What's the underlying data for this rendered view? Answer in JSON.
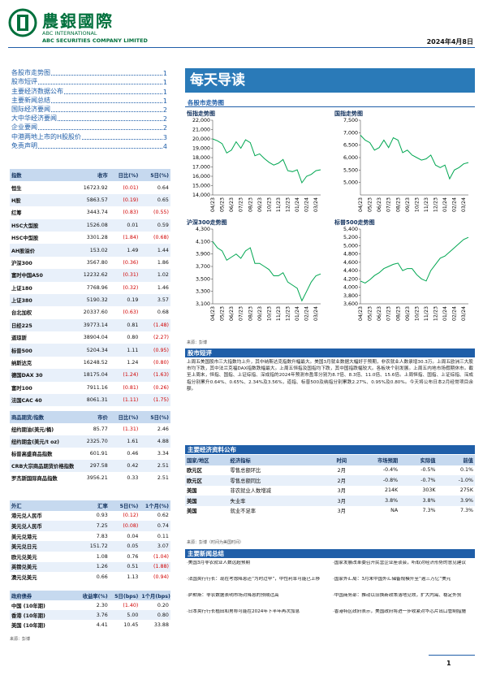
{
  "header": {
    "company_cn": "農銀國際",
    "company_en1": "ABC INTERNATIONAL",
    "company_en2": "ABC SECURITIES COMPANY LIMITED",
    "date": "2024年4月8日"
  },
  "toc": [
    {
      "item": "各股市走势图",
      "page": "1"
    },
    {
      "item": "股市短评",
      "page": "1"
    },
    {
      "item": "主要经济数据公布",
      "page": "1"
    },
    {
      "item": "主要新闻总结",
      "page": "1"
    },
    {
      "item": "国际经济要闻",
      "page": "2"
    },
    {
      "item": "大中华经济要闻",
      "page": "2"
    },
    {
      "item": "企业要闻",
      "page": "2"
    },
    {
      "item": "中港两地上市的H股股价",
      "page": "3"
    },
    {
      "item": "免责声明",
      "page": "4"
    }
  ],
  "index_table": {
    "header": [
      "指数",
      "收市",
      "日比(%)",
      "5日(%)"
    ],
    "rows": [
      [
        "恒生",
        "16723.92",
        "(0.01)",
        "0.64"
      ],
      [
        "H股",
        "5863.57",
        "(0.19)",
        "0.65"
      ],
      [
        "红筹",
        "3443.74",
        "(0.83)",
        "(0.55)"
      ],
      [
        "HSC大型股",
        "1526.08",
        "0.01",
        "0.59"
      ],
      [
        "HSC中型股",
        "3301.28",
        "(1.84)",
        "(0.68)"
      ],
      [
        "AH股溢价",
        "153.02",
        "1.49",
        "1.44"
      ],
      [
        "沪深300",
        "3567.80",
        "(0.36)",
        "1.86"
      ],
      [
        "富时中国A50",
        "12232.62",
        "(0.31)",
        "1.02"
      ],
      [
        "上证180",
        "7768.96",
        "(0.32)",
        "1.46"
      ],
      [
        "上证380",
        "5190.32",
        "0.19",
        "3.57"
      ],
      [
        "台北加权",
        "20337.60",
        "(0.63)",
        "0.68"
      ],
      [
        "日经225",
        "39773.14",
        "0.81",
        "(1.48)"
      ],
      [
        "道琼斯",
        "38904.04",
        "0.80",
        "(2.27)"
      ],
      [
        "标普500",
        "5204.34",
        "1.11",
        "(0.95)"
      ],
      [
        "纳斯达克",
        "16248.52",
        "1.24",
        "(0.80)"
      ],
      [
        "德国DAX 30",
        "18175.04",
        "(1.24)",
        "(1.63)"
      ],
      [
        "富时100",
        "7911.16",
        "(0.81)",
        "(0.26)"
      ],
      [
        "法国CAC 40",
        "8061.31",
        "(1.11)",
        "(1.75)"
      ]
    ]
  },
  "commodity_table": {
    "header": [
      "商品期货/指数",
      "市价",
      "日比(%)",
      "5日(%)"
    ],
    "rows": [
      [
        "纽约期油(美元/桶)",
        "85.77",
        "(1.31)",
        "2.46"
      ],
      [
        "纽约期金(美元/t oz)",
        "2325.70",
        "1.61",
        "4.88"
      ],
      [
        "标普高盛商品指数",
        "601.91",
        "0.46",
        "3.34"
      ],
      [
        "CRB大宗商品期货价格指数",
        "297.58",
        "0.42",
        "2.51"
      ],
      [
        "罗杰斯国际商品指数",
        "3956.21",
        "0.33",
        "2.51"
      ]
    ]
  },
  "fx_table": {
    "header": [
      "外汇",
      "汇率",
      "5日(%)",
      "1个月(%)"
    ],
    "rows": [
      [
        "港元兑人民币",
        "0.93",
        "(0.12)",
        "0.62"
      ],
      [
        "美元兑人民币",
        "7.25",
        "(0.08)",
        "0.74"
      ],
      [
        "美元兑港元",
        "7.83",
        "0.04",
        "0.11"
      ],
      [
        "美元兑日元",
        "151.72",
        "0.05",
        "3.07"
      ],
      [
        "欧元兑美元",
        "1.08",
        "0.76",
        "(1.04)"
      ],
      [
        "英镑兑美元",
        "1.26",
        "0.51",
        "(1.88)"
      ],
      [
        "澳元兑美元",
        "0.66",
        "1.13",
        "(0.94)"
      ]
    ]
  },
  "bond_table": {
    "header": [
      "政府债券",
      "收益率(%)",
      "5日(bps)",
      "1个月(bps)"
    ],
    "rows": [
      [
        "中国 (10年期)",
        "2.30",
        "(1.40)",
        "0.20"
      ],
      [
        "香港 (10年期)",
        "3.76",
        "5.00",
        "0.80"
      ],
      [
        "美国 (10年期)",
        "4.41",
        "10.45",
        "33.88"
      ]
    ]
  },
  "left_source": "来源：彭博",
  "main_title": "每天导读",
  "charts_heading": "各股市走势图",
  "chart_data": [
    {
      "type": "line",
      "title": "恒指走势图",
      "color": "#00a651",
      "categories": [
        "04/23",
        null,
        "05/23",
        null,
        "06/23",
        null,
        "07/23",
        null,
        "08/23",
        null,
        "09/23",
        null,
        "10/23",
        null,
        "11/23",
        null,
        "12/23",
        null,
        "01/24",
        null,
        "02/24",
        null,
        "03/24",
        null
      ],
      "values": [
        20000,
        19800,
        19500,
        18500,
        18800,
        19700,
        19000,
        19900,
        19600,
        18200,
        18400,
        17900,
        17500,
        17200,
        17400,
        17800,
        16600,
        16500,
        16700,
        15300,
        16000,
        16200,
        16600,
        16700
      ],
      "ylim": [
        14000,
        22000
      ],
      "yticks": [
        {
          "value": 14000,
          "label": "14,000"
        },
        {
          "value": 15000,
          "label": "15,000"
        },
        {
          "value": 16000,
          "label": "16,000"
        },
        {
          "value": 17000,
          "label": "17,000"
        },
        {
          "value": 18000,
          "label": "18,000"
        },
        {
          "value": 19000,
          "label": "19,000"
        },
        {
          "value": 20000,
          "label": "20,000"
        },
        {
          "value": 21000,
          "label": "21,000"
        },
        {
          "value": 22000,
          "label": "22,000"
        }
      ]
    },
    {
      "type": "line",
      "title": "国指走势图",
      "color": "#00a651",
      "categories": [
        "04/23",
        null,
        "05/23",
        null,
        "06/23",
        null,
        "07/23",
        null,
        "08/23",
        null,
        "09/23",
        null,
        "10/23",
        null,
        "11/23",
        null,
        "12/23",
        null,
        "01/24",
        null,
        "02/24",
        null,
        "03/24",
        null
      ],
      "values": [
        6900,
        6700,
        6600,
        6300,
        6400,
        6700,
        6400,
        6800,
        6700,
        6200,
        6300,
        6100,
        6000,
        5900,
        5950,
        6100,
        5700,
        5600,
        5700,
        5150,
        5500,
        5600,
        5750,
        5800
      ],
      "ylim": [
        4500,
        7500
      ],
      "yticks": [
        {
          "value": 5000,
          "label": "5,000"
        },
        {
          "value": 5500,
          "label": "5,500"
        },
        {
          "value": 6000,
          "label": "6,000"
        },
        {
          "value": 6500,
          "label": "6,500"
        },
        {
          "value": 7000,
          "label": "7,000"
        },
        {
          "value": 7500,
          "label": "7,500"
        }
      ]
    },
    {
      "type": "line",
      "title": "沪深300走势图",
      "color": "#00a651",
      "categories": [
        "04/23",
        null,
        "05/23",
        null,
        "06/23",
        null,
        "07/23",
        null,
        "08/23",
        null,
        "09/23",
        null,
        "10/23",
        null,
        "11/23",
        null,
        "12/23",
        null,
        "01/24",
        null,
        "02/24",
        null,
        "03/24",
        null
      ],
      "values": [
        4100,
        4000,
        3950,
        3800,
        3850,
        3900,
        3830,
        3950,
        4000,
        3750,
        3750,
        3700,
        3650,
        3550,
        3550,
        3600,
        3450,
        3400,
        3350,
        3150,
        3300,
        3450,
        3550,
        3580
      ],
      "ylim": [
        3100,
        4300
      ],
      "yticks": [
        {
          "value": 3100,
          "label": "3,100"
        },
        {
          "value": 3300,
          "label": "3,300"
        },
        {
          "value": 3500,
          "label": "3,500"
        },
        {
          "value": 3700,
          "label": "3,700"
        },
        {
          "value": 3900,
          "label": "3,900"
        },
        {
          "value": 4100,
          "label": "4,100"
        },
        {
          "value": 4300,
          "label": "4,300"
        }
      ]
    },
    {
      "type": "line",
      "title": "标普500走势图",
      "color": "#00a651",
      "categories": [
        "04/23",
        null,
        "05/23",
        null,
        "06/23",
        null,
        "07/23",
        null,
        "08/23",
        null,
        "09/23",
        null,
        "10/23",
        null,
        "11/23",
        null,
        "12/23",
        null,
        "01/24",
        null,
        "02/24",
        null,
        "03/24",
        null
      ],
      "values": [
        4150,
        4100,
        4180,
        4280,
        4350,
        4450,
        4500,
        4550,
        4580,
        4400,
        4450,
        4450,
        4300,
        4200,
        4150,
        4400,
        4550,
        4700,
        4750,
        4850,
        4950,
        5050,
        5150,
        5200
      ],
      "ylim": [
        3600,
        5400
      ],
      "yticks": [
        {
          "value": 3600,
          "label": "3,600"
        },
        {
          "value": 3800,
          "label": "3,800"
        },
        {
          "value": 4000,
          "label": "4,000"
        },
        {
          "value": 4200,
          "label": "4,200"
        },
        {
          "value": 4400,
          "label": "4,400"
        },
        {
          "value": 4600,
          "label": "4,600"
        },
        {
          "value": 4800,
          "label": "4,800"
        },
        {
          "value": 5000,
          "label": "5,000"
        },
        {
          "value": 5200,
          "label": "5,200"
        },
        {
          "value": 5400,
          "label": "5,400"
        }
      ]
    }
  ],
  "chart_source": "来源：彭博",
  "commentary": {
    "heading": "股市短评",
    "text": "上周五美国股市三大指数均上升，其中纳斯达克指数升幅最大。美国3月就业数据大幅好于预期，非农就业人数录增30.3万。上周五欧洲三大股市均下跌，其中法兰克福DAX指数跌幅最大。上周五恒指及国指均下跌，其中国指跌幅较大。各板块个别发展。上周五内地市场假期休市。截至上周末，恒指、国指、上证综指、深成指的2024年预测市盈率分别为8.7倍、8.3倍、11.0倍、15.6倍。上周恒指、国指、上证综指、深成指分别累升0.64%、0.65%、2.34%及3.56%，道指、标普500及纳指分别累跌2.27%、0.95%及0.80%。今天将公布日本2月经常项目余额。"
  },
  "econ": {
    "heading": "主要经济资料公布",
    "header": [
      "国家/地区",
      "经济指标",
      "时间",
      "市场预期",
      "实际值",
      "前值"
    ],
    "rows": [
      [
        "欧元区",
        "零售总额环比",
        "2月",
        "-0.4%",
        "-0.5%",
        "0.1%"
      ],
      [
        "欧元区",
        "零售总额同比",
        "2月",
        "-0.8%",
        "-0.7%",
        "-1.0%"
      ],
      [
        "美国",
        "非农就业人数增减",
        "3月",
        "214K",
        "303K",
        "275K"
      ],
      [
        "美国",
        "失业率",
        "3月",
        "3.8%",
        "3.8%",
        "3.9%"
      ],
      [
        "美国",
        "就业不足率",
        "3月",
        "NA",
        "7.3%",
        "7.3%"
      ]
    ],
    "source": "来源：彭博（时间为美国时间）"
  },
  "news": {
    "heading": "主要新闻总结",
    "left": [
      "·美国3月非农就业人数远超预期",
      "·法国央行行长：现在考虑降息还“为时过早”，中性利率可能已上移",
      "·萨默斯：非农数据表明市场对降息的预期过高",
      "·日本央行行长植田和男称可能在2024年下半年再次加息"
    ],
    "right": [
      "·国家发展改革委召开民营企业座谈会，听取对经济形势的意见建议",
      "·国家外汇局：3月末中国外汇储备规模升至“逾三万亿”美元",
      "·中国商务部：推动以旧换新政策落地见效，扩大内需、稳定外贸",
      "·香港特区政府表示，美国政府将进一步收紧对华芯片出口管制措施"
    ]
  },
  "page_number": "1"
}
